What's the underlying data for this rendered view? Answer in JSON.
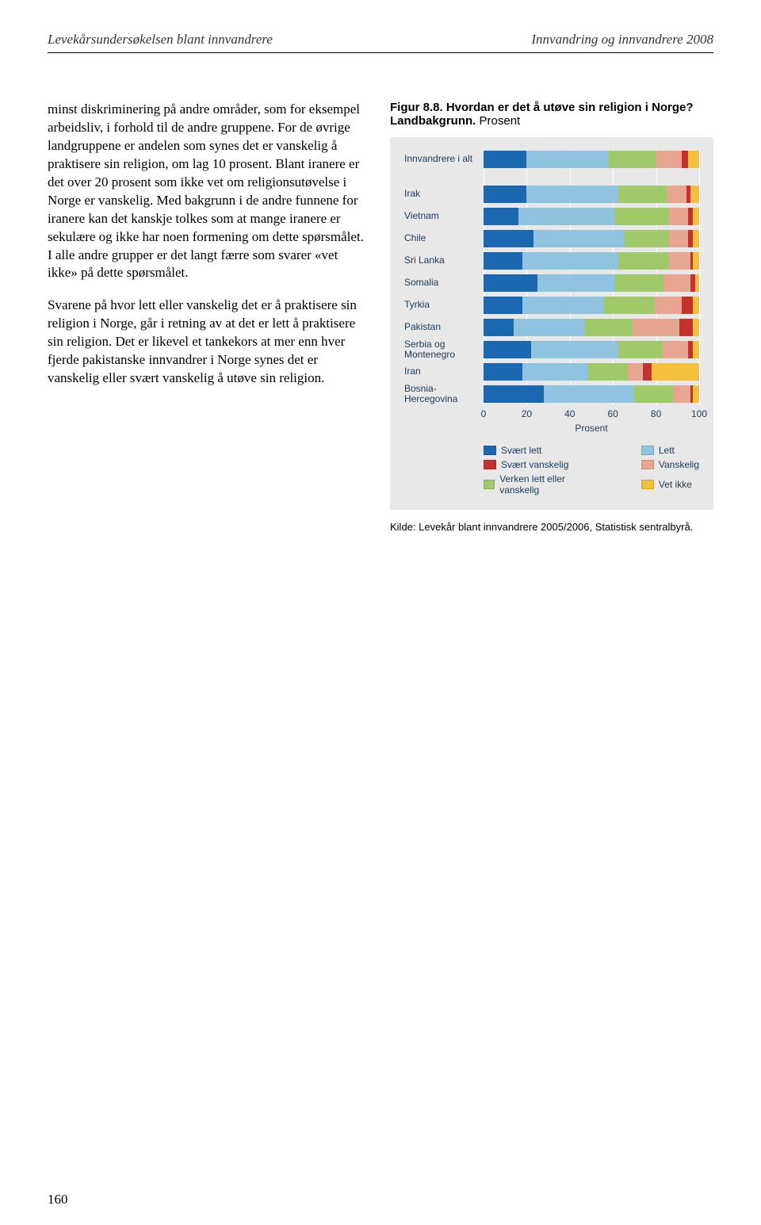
{
  "header": {
    "left": "Levekårsundersøkelsen blant innvandrere",
    "right": "Innvandring og innvandrere 2008"
  },
  "body": {
    "p1": "minst diskriminering på andre områder, som for eksempel arbeidsliv, i forhold til de andre gruppene. For de øvrige landgruppene er andelen som synes det er vanskelig å praktisere sin religion, om lag 10 prosent. Blant iranere er det over 20 prosent som ikke vet om religionsutøvelse i Norge er vanskelig. Med bakgrunn i de andre funnene for iranere kan det kanskje tolkes som at mange iranere er sekulære og ikke har noen formening om dette spørsmålet. I alle andre grupper er det langt færre som svarer «vet ikke» på dette spørsmålet.",
    "p2": "Svarene på hvor lett eller vanskelig det er å praktisere sin religion i Norge, går i retning av at det er lett å praktisere sin religion. Det er likevel et tankekors at mer enn hver fjerde pakistanske innvandrer i Norge synes det er vanskelig eller svært vanskelig å utøve sin religion."
  },
  "figure": {
    "title_bold": "Figur 8.8. Hvordan er det å utøve sin religion i Norge? Landbakgrunn.",
    "title_reg": " Prosent",
    "axis_label": "Prosent",
    "ticks": [
      0,
      20,
      40,
      60,
      80,
      100
    ],
    "colors": {
      "svart_lett": "#1c68b0",
      "lett": "#8fc3e0",
      "verken": "#a0c96a",
      "vanskelig": "#e8a690",
      "svart_vanskelig": "#c4322e",
      "vet_ikke": "#f4bf3a",
      "grid": "#ffffff",
      "panel": "#e8e8e8",
      "label": "#1a3a5a"
    },
    "legend": [
      {
        "key": "svart_lett",
        "label": "Svært lett"
      },
      {
        "key": "lett",
        "label": "Lett"
      },
      {
        "key": "svart_vanskelig",
        "label": "Svært vanskelig"
      },
      {
        "key": "vanskelig",
        "label": "Vanskelig"
      },
      {
        "key": "verken",
        "label": "Verken lett eller vanskelig"
      },
      {
        "key": "vet_ikke",
        "label": "Vet ikke"
      }
    ],
    "series_order": [
      "svart_lett",
      "lett",
      "verken",
      "vanskelig",
      "svart_vanskelig",
      "vet_ikke"
    ],
    "rows": [
      {
        "label": "Innvandrere i alt",
        "vals": {
          "svart_lett": 20,
          "lett": 38,
          "verken": 22,
          "vanskelig": 12,
          "svart_vanskelig": 3,
          "vet_ikke": 5
        },
        "spacer_after": true
      },
      {
        "label": "Irak",
        "vals": {
          "svart_lett": 20,
          "lett": 42,
          "verken": 23,
          "vanskelig": 9,
          "svart_vanskelig": 2,
          "vet_ikke": 4
        }
      },
      {
        "label": "Vietnam",
        "vals": {
          "svart_lett": 16,
          "lett": 45,
          "verken": 25,
          "vanskelig": 9,
          "svart_vanskelig": 2,
          "vet_ikke": 3
        }
      },
      {
        "label": "Chile",
        "vals": {
          "svart_lett": 23,
          "lett": 42,
          "verken": 21,
          "vanskelig": 9,
          "svart_vanskelig": 2,
          "vet_ikke": 3
        }
      },
      {
        "label": "Sri Lanka",
        "vals": {
          "svart_lett": 18,
          "lett": 44,
          "verken": 24,
          "vanskelig": 10,
          "svart_vanskelig": 1,
          "vet_ikke": 3
        }
      },
      {
        "label": "Somalia",
        "vals": {
          "svart_lett": 25,
          "lett": 36,
          "verken": 23,
          "vanskelig": 12,
          "svart_vanskelig": 2,
          "vet_ikke": 2
        }
      },
      {
        "label": "Tyrkia",
        "vals": {
          "svart_lett": 18,
          "lett": 38,
          "verken": 23,
          "vanskelig": 13,
          "svart_vanskelig": 5,
          "vet_ikke": 3
        }
      },
      {
        "label": "Pakistan",
        "vals": {
          "svart_lett": 14,
          "lett": 33,
          "verken": 22,
          "vanskelig": 22,
          "svart_vanskelig": 6,
          "vet_ikke": 3
        }
      },
      {
        "label": "Serbia og Montenegro",
        "vals": {
          "svart_lett": 22,
          "lett": 40,
          "verken": 21,
          "vanskelig": 12,
          "svart_vanskelig": 2,
          "vet_ikke": 3
        }
      },
      {
        "label": "Iran",
        "vals": {
          "svart_lett": 18,
          "lett": 30,
          "verken": 19,
          "vanskelig": 7,
          "svart_vanskelig": 4,
          "vet_ikke": 22
        }
      },
      {
        "label": "Bosnia-Hercegovina",
        "vals": {
          "svart_lett": 28,
          "lett": 42,
          "verken": 18,
          "vanskelig": 8,
          "svart_vanskelig": 1,
          "vet_ikke": 3
        }
      }
    ],
    "source": "Kilde: Levekår blant innvandrere 2005/2006, Statistisk sentralbyrå."
  },
  "page_number": "160"
}
